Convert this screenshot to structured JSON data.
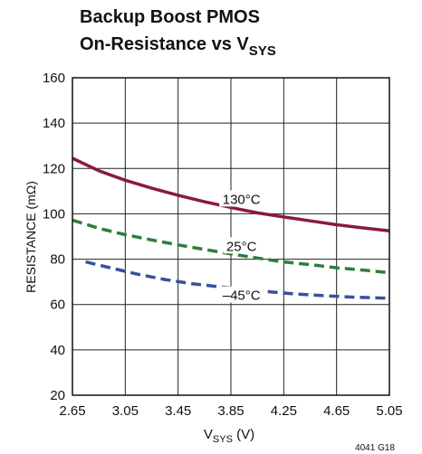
{
  "chart_data": {
    "type": "line",
    "title_lines": [
      "Backup Boost PMOS",
      "On-Resistance vs V"
    ],
    "title_subscript": "SYS",
    "xlabel": "V",
    "xlabel_subscript": "SYS",
    "xlabel_unit": " (V)",
    "ylabel": "RESISTANCE (mΩ)",
    "xlim": [
      2.65,
      5.05
    ],
    "ylim": [
      20,
      160
    ],
    "xticks": [
      "2.65",
      "3.05",
      "3.45",
      "3.85",
      "4.25",
      "4.65",
      "5.05"
    ],
    "yticks": [
      "20",
      "40",
      "60",
      "80",
      "100",
      "120",
      "140",
      "160"
    ],
    "grid": true,
    "figure_code": "4041 G18",
    "series": [
      {
        "name": "130°C",
        "color": "#8b1a3a",
        "style": "solid",
        "x": [
          2.65,
          2.85,
          3.05,
          3.25,
          3.45,
          3.65,
          3.85,
          4.05,
          4.25,
          4.45,
          4.65,
          4.85,
          5.05
        ],
        "y": [
          124.5,
          119,
          114.8,
          111.3,
          108.2,
          105.3,
          102.8,
          100.4,
          98.6,
          96.9,
          95.2,
          93.8,
          92.5
        ]
      },
      {
        "name": "25°C",
        "color": "#2e7d3a",
        "style": "dashed",
        "x": [
          2.65,
          2.85,
          3.05,
          3.25,
          3.45,
          3.65,
          3.85,
          4.05,
          4.25,
          4.45,
          4.65,
          4.85,
          5.05
        ],
        "y": [
          97.2,
          93.6,
          90.8,
          88.5,
          86.3,
          84.3,
          82.3,
          80.5,
          78.8,
          77.6,
          76.2,
          75.2,
          74
        ]
      },
      {
        "name": "–45°C",
        "color": "#3a4fa0",
        "style": "dashed",
        "x": [
          2.75,
          2.95,
          3.15,
          3.35,
          3.55,
          3.75,
          3.95,
          4.15,
          4.35,
          4.55,
          4.75,
          4.95,
          5.05
        ],
        "y": [
          78.8,
          76,
          73.3,
          71,
          69.2,
          67.9,
          66.7,
          65.6,
          64.6,
          63.9,
          63.3,
          62.9,
          62.8
        ]
      }
    ]
  }
}
